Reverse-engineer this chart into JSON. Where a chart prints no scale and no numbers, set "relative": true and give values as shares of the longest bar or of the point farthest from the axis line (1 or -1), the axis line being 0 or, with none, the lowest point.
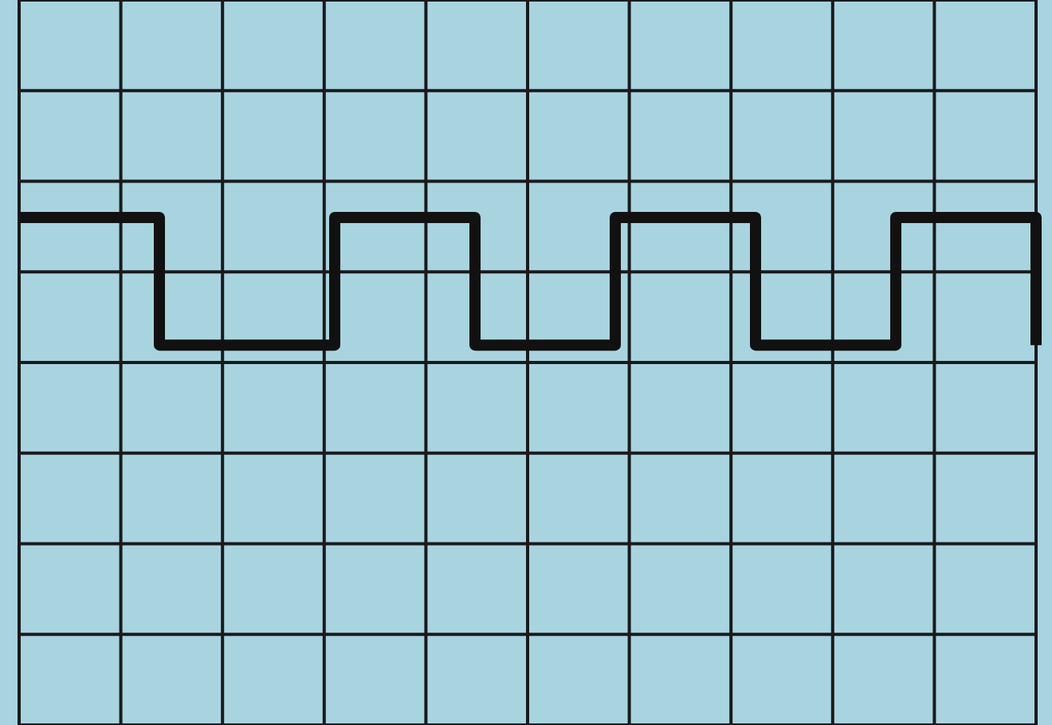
{
  "chart_data": {
    "type": "step",
    "relative": true,
    "grid": true,
    "marker": "none",
    "line_style": "solid",
    "categories": [
      null,
      null,
      null,
      null,
      null,
      null,
      null,
      null,
      null,
      null,
      null,
      null,
      null,
      null,
      null,
      null,
      null,
      null,
      null,
      null,
      null,
      null,
      null,
      null,
      null,
      null,
      null,
      null,
      null,
      null
    ],
    "series": [
      {
        "color": "#111111",
        "values": [
          1,
          1,
          1,
          1,
          0.12,
          0.12,
          0.12,
          0.12,
          0.12,
          1,
          1,
          1,
          1,
          0.12,
          0.12,
          0.12,
          0.12,
          1,
          1,
          1,
          1,
          0.12,
          0.12,
          0.12,
          0.12,
          1,
          1,
          1,
          1,
          0.12
        ]
      }
    ]
  }
}
